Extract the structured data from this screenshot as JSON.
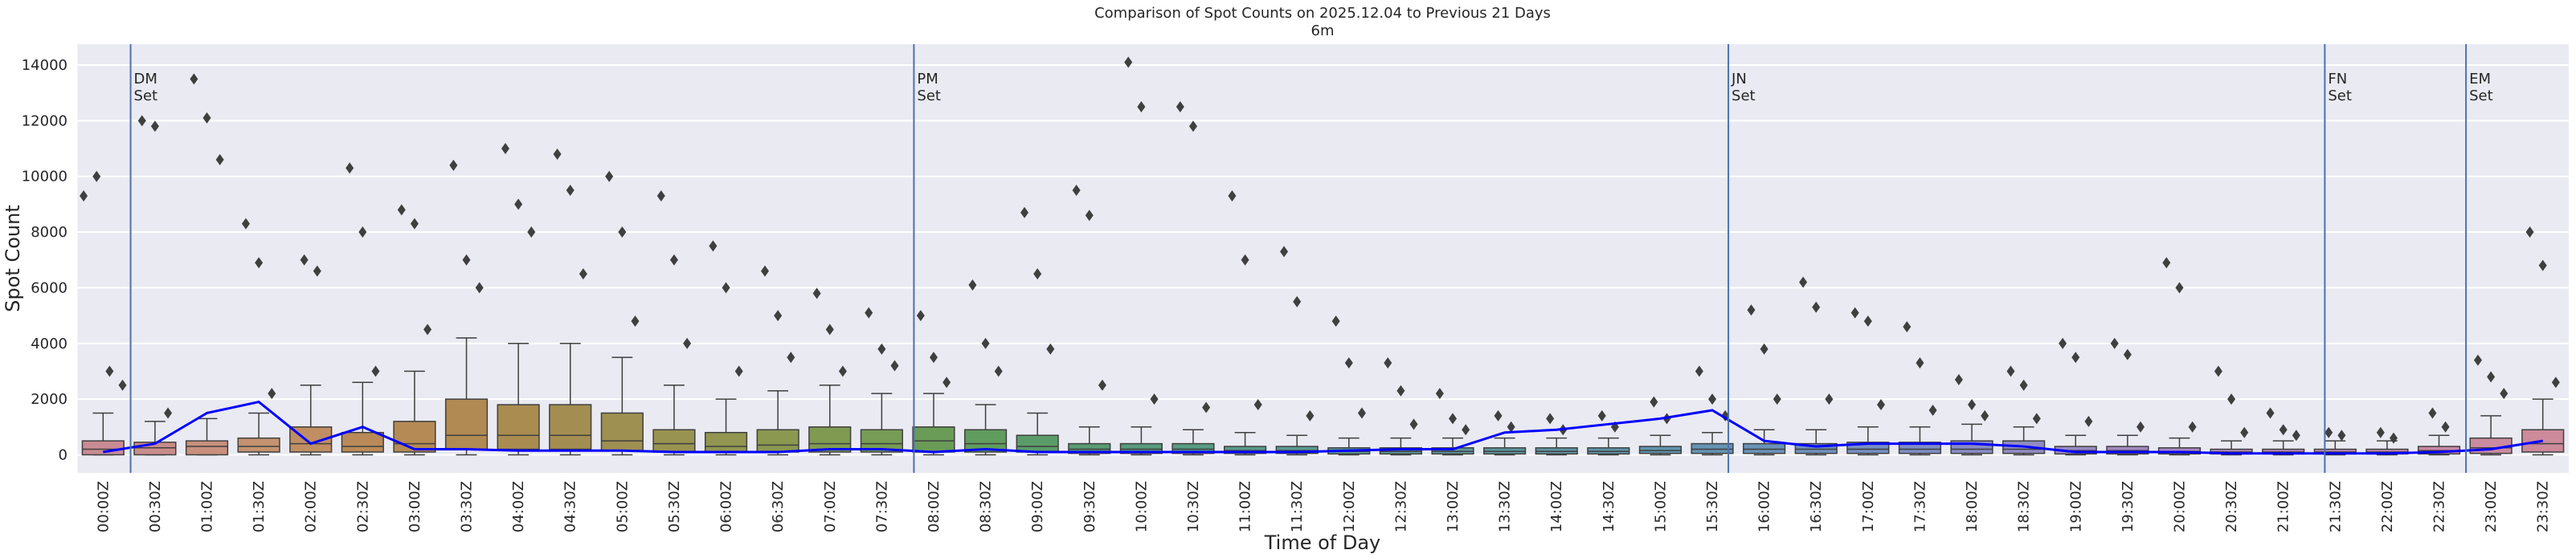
{
  "chart_data": {
    "type": "box",
    "title": "Comparison of Spot Counts on 2025.12.04 to Previous 21 Days",
    "subtitle": "6m",
    "xlabel": "Time of Day",
    "ylabel": "Spot Count",
    "categories": [
      "00:00Z",
      "00:30Z",
      "01:00Z",
      "01:30Z",
      "02:00Z",
      "02:30Z",
      "03:00Z",
      "03:30Z",
      "04:00Z",
      "04:30Z",
      "05:00Z",
      "05:30Z",
      "06:00Z",
      "06:30Z",
      "07:00Z",
      "07:30Z",
      "08:00Z",
      "08:30Z",
      "09:00Z",
      "09:30Z",
      "10:00Z",
      "10:30Z",
      "11:00Z",
      "11:30Z",
      "12:00Z",
      "12:30Z",
      "13:00Z",
      "13:30Z",
      "14:00Z",
      "14:30Z",
      "15:00Z",
      "15:30Z",
      "16:00Z",
      "16:30Z",
      "17:00Z",
      "17:30Z",
      "18:00Z",
      "18:30Z",
      "19:00Z",
      "19:30Z",
      "20:00Z",
      "20:30Z",
      "21:00Z",
      "21:30Z",
      "22:00Z",
      "22:30Z",
      "23:00Z",
      "23:30Z"
    ],
    "boxes": [
      [
        0,
        0,
        200,
        500,
        1500
      ],
      [
        0,
        0,
        250,
        450,
        1200
      ],
      [
        0,
        0,
        300,
        500,
        1300
      ],
      [
        0,
        100,
        300,
        600,
        1500
      ],
      [
        0,
        100,
        400,
        1000,
        2500
      ],
      [
        0,
        100,
        300,
        800,
        2600
      ],
      [
        0,
        100,
        400,
        1200,
        3000
      ],
      [
        0,
        200,
        700,
        2000,
        4200
      ],
      [
        0,
        200,
        700,
        1800,
        4000
      ],
      [
        0,
        200,
        700,
        1800,
        4000
      ],
      [
        0,
        150,
        500,
        1500,
        3500
      ],
      [
        0,
        100,
        400,
        900,
        2500
      ],
      [
        0,
        100,
        300,
        800,
        2000
      ],
      [
        0,
        100,
        350,
        900,
        2300
      ],
      [
        0,
        100,
        400,
        1000,
        2500
      ],
      [
        0,
        100,
        400,
        900,
        2200
      ],
      [
        0,
        100,
        500,
        1000,
        2200
      ],
      [
        0,
        100,
        400,
        900,
        1800
      ],
      [
        0,
        100,
        300,
        700,
        1500
      ],
      [
        0,
        50,
        200,
        400,
        1000
      ],
      [
        0,
        50,
        200,
        400,
        1000
      ],
      [
        0,
        50,
        200,
        400,
        900
      ],
      [
        0,
        50,
        150,
        300,
        800
      ],
      [
        0,
        50,
        150,
        300,
        700
      ],
      [
        0,
        30,
        120,
        250,
        600
      ],
      [
        0,
        30,
        120,
        250,
        600
      ],
      [
        0,
        30,
        120,
        250,
        600
      ],
      [
        0,
        30,
        120,
        250,
        600
      ],
      [
        0,
        30,
        120,
        250,
        600
      ],
      [
        0,
        30,
        120,
        250,
        600
      ],
      [
        0,
        50,
        150,
        300,
        700
      ],
      [
        0,
        50,
        200,
        400,
        800
      ],
      [
        0,
        50,
        200,
        400,
        900
      ],
      [
        0,
        50,
        200,
        400,
        900
      ],
      [
        0,
        50,
        200,
        450,
        1000
      ],
      [
        0,
        50,
        200,
        450,
        1000
      ],
      [
        0,
        50,
        200,
        500,
        1100
      ],
      [
        0,
        50,
        200,
        500,
        1000
      ],
      [
        0,
        30,
        150,
        300,
        700
      ],
      [
        0,
        30,
        150,
        300,
        700
      ],
      [
        0,
        30,
        120,
        250,
        600
      ],
      [
        0,
        30,
        100,
        200,
        500
      ],
      [
        0,
        30,
        100,
        200,
        500
      ],
      [
        0,
        30,
        100,
        200,
        500
      ],
      [
        0,
        30,
        100,
        200,
        500
      ],
      [
        0,
        30,
        150,
        300,
        700
      ],
      [
        0,
        50,
        250,
        600,
        1400
      ],
      [
        0,
        100,
        400,
        900,
        2000
      ]
    ],
    "outliers": [
      [
        9300,
        10000,
        3000,
        2500
      ],
      [
        12000,
        11800,
        1500
      ],
      [
        13500,
        12100,
        10600
      ],
      [
        8300,
        6900,
        2200
      ],
      [
        7000,
        6600
      ],
      [
        10300,
        8000,
        3000
      ],
      [
        8800,
        8300,
        4500
      ],
      [
        10400,
        7000,
        6000
      ],
      [
        11000,
        9000,
        8000
      ],
      [
        10800,
        9500,
        6500
      ],
      [
        10000,
        8000,
        4800
      ],
      [
        9300,
        7000,
        4000
      ],
      [
        7500,
        6000,
        3000
      ],
      [
        6600,
        5000,
        3500
      ],
      [
        5800,
        4500,
        3000
      ],
      [
        5100,
        3800,
        3200
      ],
      [
        5000,
        3500,
        2600
      ],
      [
        6100,
        4000,
        3000
      ],
      [
        8700,
        6500,
        3800
      ],
      [
        9500,
        8600,
        2500
      ],
      [
        14100,
        12500,
        2000
      ],
      [
        12500,
        11800,
        1700
      ],
      [
        9300,
        7000,
        1800
      ],
      [
        7300,
        5500,
        1400
      ],
      [
        4800,
        3300,
        1500
      ],
      [
        3300,
        2300,
        1100
      ],
      [
        2200,
        1300,
        900
      ],
      [
        1400,
        1000
      ],
      [
        1300,
        900
      ],
      [
        1400,
        1000
      ],
      [
        1900,
        1300
      ],
      [
        3000,
        2000,
        1400
      ],
      [
        5200,
        3800,
        2000
      ],
      [
        6200,
        5300,
        2000
      ],
      [
        5100,
        4800,
        1800
      ],
      [
        4600,
        3300,
        1600
      ],
      [
        2700,
        1800,
        1400
      ],
      [
        3000,
        2500,
        1300
      ],
      [
        4000,
        3500,
        1200
      ],
      [
        4000,
        3600,
        1000
      ],
      [
        6900,
        6000,
        1000
      ],
      [
        3000,
        2000,
        800
      ],
      [
        1500,
        900,
        700
      ],
      [
        800,
        700
      ],
      [
        800,
        600
      ],
      [
        1500,
        1000
      ],
      [
        3400,
        2800,
        2200
      ],
      [
        8000,
        6800,
        2600
      ]
    ],
    "colors": [
      "#c98b94",
      "#c98c8a",
      "#c9907c",
      "#c49270",
      "#c08e62",
      "#b98a58",
      "#b58a55",
      "#b08a52",
      "#aa8c50",
      "#a48d50",
      "#9e9050",
      "#989350",
      "#929650",
      "#8a9850",
      "#809a52",
      "#769c55",
      "#6a9c58",
      "#609c5e",
      "#5a9c68",
      "#589b72",
      "#589b7c",
      "#589b84",
      "#599a8a",
      "#5a9a90",
      "#5b9994",
      "#5c9898",
      "#5d989c",
      "#5e97a0",
      "#5f96a4",
      "#6095a8",
      "#6294ad",
      "#6593b2",
      "#6a92b7",
      "#7090bb",
      "#778fbe",
      "#7f8ec0",
      "#888cc1",
      "#918bc1",
      "#9a8ac1",
      "#a389c0",
      "#ab88be",
      "#b388bb",
      "#ba88b7",
      "#c088b2",
      "#c488ac",
      "#c889a5",
      "#ca8a9f",
      "#cc8a9a"
    ],
    "line": {
      "color": "#0000ff",
      "values": [
        100,
        400,
        1500,
        1900,
        400,
        1000,
        200,
        200,
        150,
        150,
        150,
        100,
        100,
        100,
        200,
        200,
        100,
        200,
        100,
        100,
        100,
        100,
        100,
        100,
        150,
        200,
        200,
        800,
        900,
        1100,
        1300,
        1600,
        500,
        300,
        400,
        400,
        400,
        300,
        100,
        100,
        100,
        50,
        50,
        50,
        50,
        100,
        200,
        500
      ]
    },
    "vlines": [
      {
        "x": 0.53,
        "label": [
          "DM",
          "Set"
        ]
      },
      {
        "x": 15.62,
        "label": [
          "PM",
          "Set"
        ]
      },
      {
        "x": 31.31,
        "label": [
          "JN",
          "Set"
        ]
      },
      {
        "x": 42.8,
        "label": [
          "FN",
          "Set"
        ]
      },
      {
        "x": 45.52,
        "label": [
          "EM",
          "Set"
        ]
      }
    ],
    "vline_color": "#4c72b0",
    "ylim": [
      -650,
      14750
    ],
    "yticks": [
      0,
      2000,
      4000,
      6000,
      8000,
      10000,
      12000,
      14000
    ],
    "grid": true
  }
}
